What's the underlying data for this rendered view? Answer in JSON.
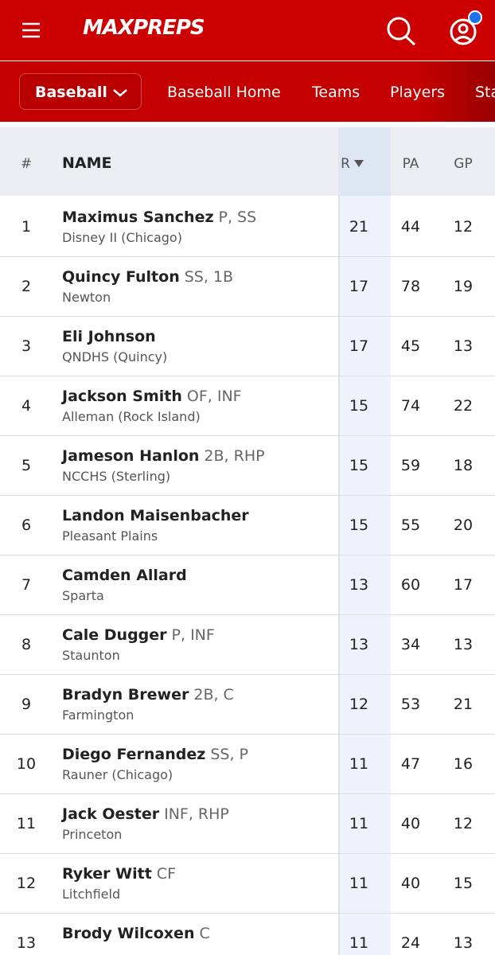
{
  "header": {
    "logo": "MAXPREPS"
  },
  "nav": {
    "sport": "Baseball",
    "links": [
      "Baseball Home",
      "Teams",
      "Players",
      "Stats"
    ]
  },
  "table": {
    "columns": [
      "#",
      "NAME",
      "R",
      "PA",
      "GP"
    ],
    "rows": [
      {
        "rank": "1",
        "name": "Maximus Sanchez",
        "pos": "P, SS",
        "school": "Disney II (Chicago)",
        "r": "21",
        "pa": "44",
        "gp": "12"
      },
      {
        "rank": "2",
        "name": "Quincy Fulton",
        "pos": "SS, 1B",
        "school": "Newton",
        "r": "17",
        "pa": "78",
        "gp": "19"
      },
      {
        "rank": "3",
        "name": "Eli Johnson",
        "school": "QNDHS (Quincy)",
        "r": "17",
        "pa": "45",
        "gp": "13"
      },
      {
        "rank": "4",
        "name": "Jackson Smith",
        "pos": "OF, INF",
        "school": "Alleman (Rock Island)",
        "r": "15",
        "pa": "74",
        "gp": "22"
      },
      {
        "rank": "5",
        "name": "Jameson Hanlon",
        "pos": "2B, RHP",
        "school": "NCCHS (Sterling)",
        "r": "15",
        "pa": "59",
        "gp": "18"
      },
      {
        "rank": "6",
        "name": "Landon Maisenbacher",
        "school": "Pleasant Plains",
        "r": "15",
        "pa": "55",
        "gp": "20"
      },
      {
        "rank": "7",
        "name": "Camden Allard",
        "school": "Sparta",
        "r": "13",
        "pa": "60",
        "gp": "17"
      },
      {
        "rank": "8",
        "name": "Cale Dugger",
        "pos": "P, INF",
        "school": "Staunton",
        "r": "13",
        "pa": "34",
        "gp": "13"
      },
      {
        "rank": "9",
        "name": "Bradyn Brewer",
        "pos": "2B, C",
        "school": "Farmington",
        "r": "12",
        "pa": "53",
        "gp": "21"
      },
      {
        "rank": "10",
        "name": "Diego Fernandez",
        "pos": "SS, P",
        "school": "Rauner (Chicago)",
        "r": "11",
        "pa": "47",
        "gp": "16"
      },
      {
        "rank": "11",
        "name": "Jack Oester",
        "pos": "INF, RHP",
        "school": "Princeton",
        "r": "11",
        "pa": "40",
        "gp": "12"
      },
      {
        "rank": "12",
        "name": "Ryker Witt",
        "pos": "CF",
        "school": "Litchfield",
        "r": "11",
        "pa": "40",
        "gp": "15"
      },
      {
        "rank": "13",
        "name": "Brody Wilcoxen",
        "pos": "C",
        "r": "11",
        "pa": "24",
        "gp": "13"
      }
    ]
  }
}
